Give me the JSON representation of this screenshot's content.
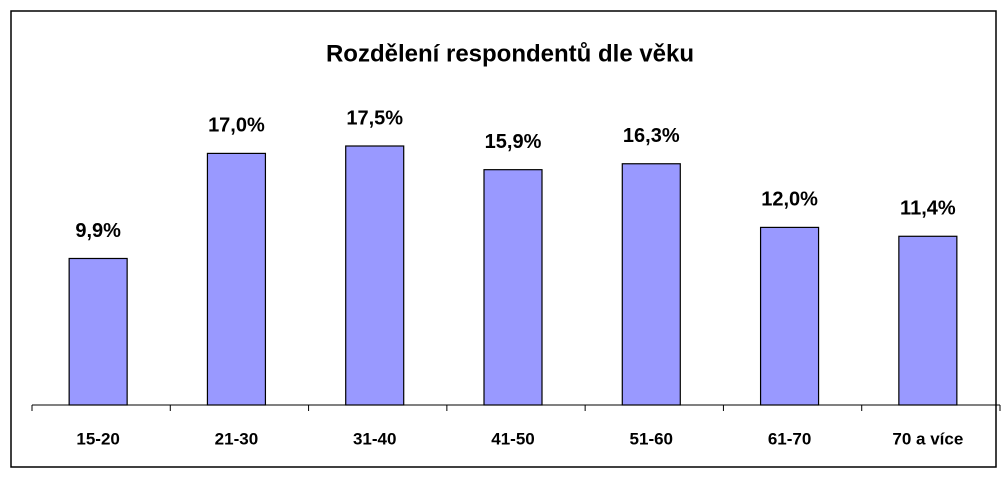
{
  "chart_data": {
    "type": "bar",
    "title": "Rozdělení respondentů dle věku",
    "categories": [
      "15-20",
      "21-30",
      "31-40",
      "41-50",
      "51-60",
      "61-70",
      "70 a více"
    ],
    "values": [
      9.9,
      17.0,
      17.5,
      15.9,
      16.3,
      12.0,
      11.4
    ],
    "value_labels": [
      "9,9%",
      "17,0%",
      "17,5%",
      "15,9%",
      "16,3%",
      "12,0%",
      "11,4%"
    ],
    "color": "#9999ff"
  }
}
